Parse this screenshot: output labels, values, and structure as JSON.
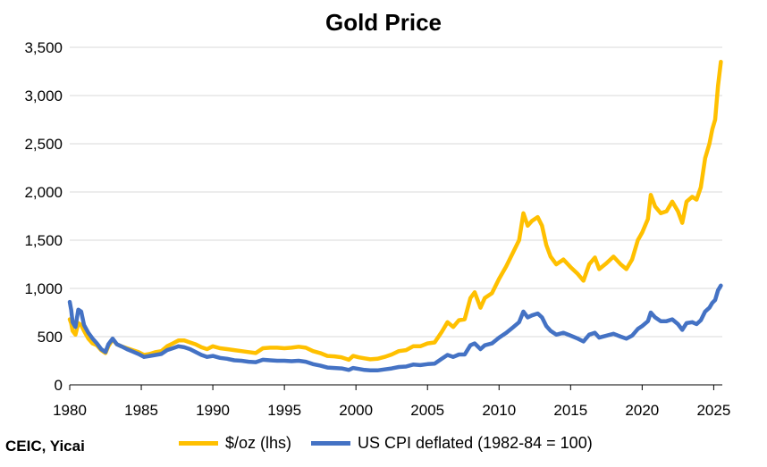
{
  "chart_data": {
    "type": "line",
    "title": "Gold Price",
    "source": "CEIC, Yicai",
    "xlabel": "",
    "ylabel": "",
    "xlim": [
      1980,
      2025.6
    ],
    "ylim": [
      0,
      3500
    ],
    "x_ticks": [
      1980,
      1985,
      1990,
      1995,
      2000,
      2005,
      2010,
      2015,
      2020,
      2025
    ],
    "y_ticks": [
      0,
      500,
      1000,
      1500,
      2000,
      2500,
      3000,
      3500
    ],
    "y_tick_labels": [
      "0",
      "500",
      "1,000",
      "1,500",
      "2,000",
      "2,500",
      "3,000",
      "3,500"
    ],
    "grid": "horizontal",
    "legend_position": "bottom",
    "series": [
      {
        "name": "$/oz (lhs)",
        "color": "#FFC000",
        "points": [
          [
            1980.0,
            680
          ],
          [
            1980.1,
            640
          ],
          [
            1980.2,
            560
          ],
          [
            1980.4,
            520
          ],
          [
            1980.6,
            640
          ],
          [
            1980.8,
            620
          ],
          [
            1981.0,
            560
          ],
          [
            1981.3,
            480
          ],
          [
            1981.6,
            430
          ],
          [
            1981.9,
            410
          ],
          [
            1982.2,
            360
          ],
          [
            1982.5,
            330
          ],
          [
            1982.7,
            400
          ],
          [
            1983.0,
            470
          ],
          [
            1983.3,
            420
          ],
          [
            1983.6,
            400
          ],
          [
            1984.0,
            380
          ],
          [
            1984.4,
            360
          ],
          [
            1984.8,
            340
          ],
          [
            1985.2,
            310
          ],
          [
            1985.6,
            320
          ],
          [
            1986.0,
            340
          ],
          [
            1986.4,
            350
          ],
          [
            1986.8,
            400
          ],
          [
            1987.2,
            430
          ],
          [
            1987.6,
            460
          ],
          [
            1988.0,
            460
          ],
          [
            1988.4,
            440
          ],
          [
            1988.8,
            420
          ],
          [
            1989.2,
            390
          ],
          [
            1989.6,
            370
          ],
          [
            1990.0,
            400
          ],
          [
            1990.5,
            380
          ],
          [
            1991.0,
            370
          ],
          [
            1991.5,
            360
          ],
          [
            1992.0,
            350
          ],
          [
            1992.5,
            340
          ],
          [
            1993.0,
            330
          ],
          [
            1993.5,
            380
          ],
          [
            1994.0,
            385
          ],
          [
            1994.5,
            385
          ],
          [
            1995.0,
            380
          ],
          [
            1995.5,
            385
          ],
          [
            1996.0,
            395
          ],
          [
            1996.5,
            385
          ],
          [
            1997.0,
            350
          ],
          [
            1997.5,
            330
          ],
          [
            1998.0,
            300
          ],
          [
            1998.5,
            295
          ],
          [
            1999.0,
            285
          ],
          [
            1999.5,
            260
          ],
          [
            1999.8,
            300
          ],
          [
            2000.2,
            285
          ],
          [
            2000.6,
            275
          ],
          [
            2001.0,
            265
          ],
          [
            2001.5,
            270
          ],
          [
            2002.0,
            290
          ],
          [
            2002.5,
            315
          ],
          [
            2003.0,
            350
          ],
          [
            2003.5,
            360
          ],
          [
            2004.0,
            400
          ],
          [
            2004.5,
            400
          ],
          [
            2005.0,
            430
          ],
          [
            2005.5,
            440
          ],
          [
            2006.0,
            550
          ],
          [
            2006.4,
            650
          ],
          [
            2006.8,
            600
          ],
          [
            2007.2,
            670
          ],
          [
            2007.6,
            680
          ],
          [
            2008.0,
            900
          ],
          [
            2008.3,
            960
          ],
          [
            2008.7,
            800
          ],
          [
            2009.0,
            900
          ],
          [
            2009.5,
            950
          ],
          [
            2010.0,
            1100
          ],
          [
            2010.5,
            1230
          ],
          [
            2011.0,
            1380
          ],
          [
            2011.4,
            1500
          ],
          [
            2011.7,
            1780
          ],
          [
            2012.0,
            1650
          ],
          [
            2012.3,
            1700
          ],
          [
            2012.7,
            1740
          ],
          [
            2013.0,
            1650
          ],
          [
            2013.3,
            1450
          ],
          [
            2013.6,
            1330
          ],
          [
            2014.0,
            1250
          ],
          [
            2014.5,
            1300
          ],
          [
            2015.0,
            1220
          ],
          [
            2015.5,
            1150
          ],
          [
            2015.9,
            1080
          ],
          [
            2016.3,
            1250
          ],
          [
            2016.7,
            1320
          ],
          [
            2017.0,
            1200
          ],
          [
            2017.5,
            1260
          ],
          [
            2018.0,
            1330
          ],
          [
            2018.5,
            1250
          ],
          [
            2018.9,
            1200
          ],
          [
            2019.3,
            1300
          ],
          [
            2019.7,
            1500
          ],
          [
            2020.0,
            1580
          ],
          [
            2020.4,
            1720
          ],
          [
            2020.6,
            1970
          ],
          [
            2020.9,
            1850
          ],
          [
            2021.3,
            1780
          ],
          [
            2021.7,
            1800
          ],
          [
            2022.1,
            1900
          ],
          [
            2022.5,
            1800
          ],
          [
            2022.8,
            1680
          ],
          [
            2023.1,
            1900
          ],
          [
            2023.5,
            1950
          ],
          [
            2023.8,
            1920
          ],
          [
            2024.1,
            2050
          ],
          [
            2024.4,
            2350
          ],
          [
            2024.7,
            2500
          ],
          [
            2024.9,
            2650
          ],
          [
            2025.1,
            2750
          ],
          [
            2025.3,
            3100
          ],
          [
            2025.5,
            3350
          ]
        ]
      },
      {
        "name": "US CPI deflated (1982-84 = 100)",
        "color": "#4472C4",
        "points": [
          [
            1980.0,
            860
          ],
          [
            1980.1,
            780
          ],
          [
            1980.2,
            650
          ],
          [
            1980.4,
            600
          ],
          [
            1980.6,
            780
          ],
          [
            1980.8,
            760
          ],
          [
            1981.0,
            620
          ],
          [
            1981.3,
            540
          ],
          [
            1981.6,
            480
          ],
          [
            1981.9,
            430
          ],
          [
            1982.2,
            370
          ],
          [
            1982.5,
            340
          ],
          [
            1982.7,
            420
          ],
          [
            1983.0,
            480
          ],
          [
            1983.3,
            420
          ],
          [
            1983.6,
            400
          ],
          [
            1984.0,
            370
          ],
          [
            1984.4,
            345
          ],
          [
            1984.8,
            320
          ],
          [
            1985.2,
            290
          ],
          [
            1985.6,
            300
          ],
          [
            1986.0,
            310
          ],
          [
            1986.4,
            320
          ],
          [
            1986.8,
            360
          ],
          [
            1987.2,
            380
          ],
          [
            1987.6,
            400
          ],
          [
            1988.0,
            390
          ],
          [
            1988.4,
            370
          ],
          [
            1988.8,
            340
          ],
          [
            1989.2,
            310
          ],
          [
            1989.6,
            290
          ],
          [
            1990.0,
            300
          ],
          [
            1990.5,
            280
          ],
          [
            1991.0,
            270
          ],
          [
            1991.5,
            255
          ],
          [
            1992.0,
            250
          ],
          [
            1992.5,
            240
          ],
          [
            1993.0,
            235
          ],
          [
            1993.5,
            260
          ],
          [
            1994.0,
            255
          ],
          [
            1994.5,
            250
          ],
          [
            1995.0,
            250
          ],
          [
            1995.5,
            245
          ],
          [
            1996.0,
            250
          ],
          [
            1996.5,
            240
          ],
          [
            1997.0,
            215
          ],
          [
            1997.5,
            200
          ],
          [
            1998.0,
            180
          ],
          [
            1998.5,
            175
          ],
          [
            1999.0,
            170
          ],
          [
            1999.5,
            155
          ],
          [
            1999.8,
            175
          ],
          [
            2000.2,
            165
          ],
          [
            2000.6,
            155
          ],
          [
            2001.0,
            150
          ],
          [
            2001.5,
            150
          ],
          [
            2002.0,
            160
          ],
          [
            2002.5,
            170
          ],
          [
            2003.0,
            185
          ],
          [
            2003.5,
            190
          ],
          [
            2004.0,
            210
          ],
          [
            2004.5,
            205
          ],
          [
            2005.0,
            215
          ],
          [
            2005.5,
            220
          ],
          [
            2006.0,
            270
          ],
          [
            2006.4,
            310
          ],
          [
            2006.8,
            290
          ],
          [
            2007.2,
            315
          ],
          [
            2007.6,
            315
          ],
          [
            2008.0,
            410
          ],
          [
            2008.3,
            430
          ],
          [
            2008.7,
            370
          ],
          [
            2009.0,
            410
          ],
          [
            2009.5,
            430
          ],
          [
            2010.0,
            490
          ],
          [
            2010.5,
            540
          ],
          [
            2011.0,
            600
          ],
          [
            2011.4,
            650
          ],
          [
            2011.7,
            760
          ],
          [
            2012.0,
            700
          ],
          [
            2012.3,
            720
          ],
          [
            2012.7,
            740
          ],
          [
            2013.0,
            700
          ],
          [
            2013.3,
            610
          ],
          [
            2013.6,
            560
          ],
          [
            2014.0,
            520
          ],
          [
            2014.5,
            540
          ],
          [
            2015.0,
            510
          ],
          [
            2015.5,
            480
          ],
          [
            2015.9,
            450
          ],
          [
            2016.3,
            520
          ],
          [
            2016.7,
            540
          ],
          [
            2017.0,
            490
          ],
          [
            2017.5,
            510
          ],
          [
            2018.0,
            530
          ],
          [
            2018.5,
            500
          ],
          [
            2018.9,
            480
          ],
          [
            2019.3,
            510
          ],
          [
            2019.7,
            580
          ],
          [
            2020.0,
            610
          ],
          [
            2020.4,
            660
          ],
          [
            2020.6,
            750
          ],
          [
            2020.9,
            700
          ],
          [
            2021.3,
            660
          ],
          [
            2021.7,
            660
          ],
          [
            2022.1,
            680
          ],
          [
            2022.5,
            630
          ],
          [
            2022.8,
            570
          ],
          [
            2023.1,
            640
          ],
          [
            2023.5,
            650
          ],
          [
            2023.8,
            630
          ],
          [
            2024.1,
            670
          ],
          [
            2024.4,
            760
          ],
          [
            2024.7,
            800
          ],
          [
            2024.9,
            850
          ],
          [
            2025.1,
            880
          ],
          [
            2025.3,
            980
          ],
          [
            2025.5,
            1030
          ]
        ]
      }
    ]
  }
}
